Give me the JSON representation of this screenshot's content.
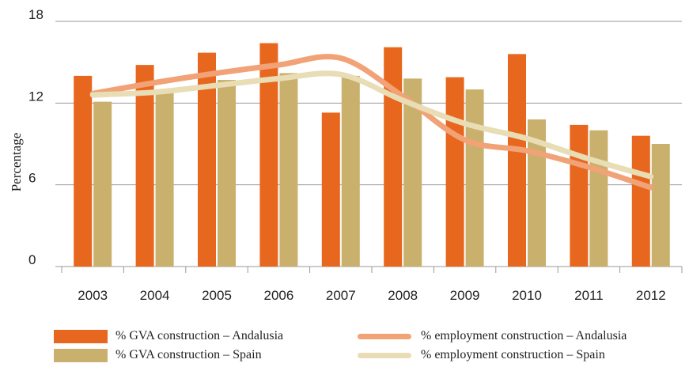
{
  "chart_data": {
    "type": "bar",
    "categories": [
      "2003",
      "2004",
      "2005",
      "2006",
      "2007",
      "2008",
      "2009",
      "2010",
      "2011",
      "2012"
    ],
    "ylabel": "Percentage",
    "xlabel": "",
    "ylim": [
      0,
      18
    ],
    "yticks": [
      "0",
      "6",
      "12",
      "18"
    ],
    "grid": "horizontal",
    "legend_position": "bottom",
    "series": [
      {
        "name": "% GVA construction – Andalusia",
        "kind": "bar",
        "color": "#E8671E",
        "values": [
          14.0,
          14.8,
          15.7,
          16.4,
          11.3,
          16.1,
          13.9,
          15.6,
          10.4,
          9.6
        ]
      },
      {
        "name": "% GVA construction – Spain",
        "kind": "bar",
        "color": "#C9B06D",
        "values": [
          12.1,
          12.9,
          13.7,
          14.2,
          14.0,
          13.8,
          13.0,
          10.8,
          10.0,
          9.0
        ]
      },
      {
        "name": "% employment construction – Andalusia",
        "kind": "line",
        "color": "#F2A277",
        "values": [
          12.7,
          13.5,
          14.2,
          14.8,
          15.3,
          12.5,
          9.3,
          8.5,
          7.3,
          5.8
        ]
      },
      {
        "name": "% employment construction – Spain",
        "kind": "line",
        "color": "#E8DDB4",
        "values": [
          12.6,
          12.8,
          13.3,
          13.8,
          14.1,
          12.2,
          10.5,
          9.4,
          7.9,
          6.6
        ]
      }
    ]
  }
}
